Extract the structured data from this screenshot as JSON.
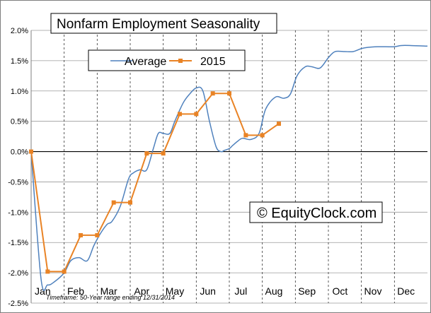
{
  "chart_data": {
    "type": "line",
    "title": "Nonfarm Employment Seasonality",
    "categories": [
      "Jan",
      "Feb",
      "Mar",
      "Apr",
      "May",
      "Jun",
      "Jul",
      "Aug",
      "Sep",
      "Oct",
      "Nov",
      "Dec"
    ],
    "yticks": [
      "2.0%",
      "1.5%",
      "1.0%",
      "0.5%",
      "0.0%",
      "-0.5%",
      "-1.0%",
      "-1.5%",
      "-2.0%",
      "-2.5%"
    ],
    "ylim": [
      -2.5,
      2.0
    ],
    "xlim": [
      0,
      12
    ],
    "legend": {
      "position": "top",
      "entries": [
        "Average",
        "2015"
      ]
    },
    "grid": {
      "horizontal": true,
      "vertical_dashed": true
    },
    "watermark": "© EquityClock.com",
    "footnote": "Timeframe: 50-Year range ending 12/31/2014",
    "series": [
      {
        "name": "Average",
        "color": "#4f81bd",
        "x": [
          0,
          0.3,
          0.5,
          0.7,
          1.0,
          1.2,
          1.45,
          1.7,
          1.9,
          2.1,
          2.3,
          2.45,
          2.7,
          2.95,
          3.1,
          3.3,
          3.5,
          3.7,
          3.85,
          4.0,
          4.2,
          4.35,
          4.6,
          4.8,
          5.0,
          5.2,
          5.4,
          5.6,
          5.75,
          5.85,
          6.0,
          6.1,
          6.25,
          6.4,
          6.65,
          6.9,
          7.1,
          7.4,
          7.65,
          7.85,
          8.05,
          8.3,
          8.5,
          8.75,
          9.0,
          9.2,
          9.5,
          9.75,
          10.0,
          10.2,
          10.5,
          10.75,
          11.0,
          11.2,
          11.5,
          12.0
        ],
        "values": [
          0.0,
          -2.1,
          -2.2,
          -2.15,
          -2.0,
          -1.8,
          -1.75,
          -1.8,
          -1.55,
          -1.35,
          -1.2,
          -1.15,
          -0.9,
          -0.45,
          -0.35,
          -0.3,
          -0.3,
          0.05,
          0.3,
          0.3,
          0.3,
          0.5,
          0.8,
          0.95,
          1.05,
          1.0,
          0.5,
          0.08,
          0.0,
          0.02,
          0.05,
          0.1,
          0.17,
          0.22,
          0.2,
          0.3,
          0.7,
          0.9,
          0.88,
          0.95,
          1.25,
          1.4,
          1.4,
          1.38,
          1.55,
          1.65,
          1.65,
          1.65,
          1.7,
          1.72,
          1.73,
          1.73,
          1.73,
          1.75,
          1.75,
          1.74
        ]
      },
      {
        "name": "2015",
        "color": "#e98325",
        "x": [
          0,
          0.5,
          1.0,
          1.5,
          2.0,
          2.5,
          3.0,
          3.5,
          4.0,
          4.5,
          5.0,
          5.5,
          6.0,
          6.5,
          7.0
        ],
        "values": [
          0.0,
          -1.98,
          -1.98,
          -1.38,
          -1.38,
          -0.84,
          -0.84,
          -0.03,
          -0.03,
          0.62,
          0.62,
          0.96,
          0.96,
          0.27,
          0.27
        ]
      }
    ],
    "extra_point_2015": {
      "x": 7.5,
      "value": 0.46
    }
  }
}
